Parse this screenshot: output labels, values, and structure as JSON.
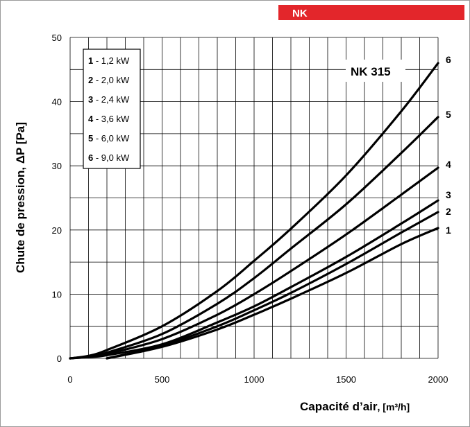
{
  "header_tag": {
    "label": "NK",
    "color": "#e3262b"
  },
  "chart_data": {
    "type": "line",
    "model_label": "NK 315",
    "xlabel_main": "Capacité d’air",
    "xlabel_unit": ", [m³/h]",
    "ylabel": "Chute de pression, ΔP [Pa]",
    "xlim": [
      0,
      2000
    ],
    "ylim": [
      0,
      50
    ],
    "x_ticks": [
      0,
      500,
      1000,
      1500,
      2000
    ],
    "y_ticks": [
      0,
      10,
      20,
      30,
      40,
      50
    ],
    "x_minor_step": 100,
    "y_minor_step": 5,
    "grid": true,
    "legend_position": "top-left",
    "legend": [
      {
        "num": "1",
        "text": " - 1,2 kW"
      },
      {
        "num": "2",
        "text": " - 2,0 kW"
      },
      {
        "num": "3",
        "text": " - 2,4 kW"
      },
      {
        "num": "4",
        "text": " - 3,6 kW"
      },
      {
        "num": "5",
        "text": " - 6,0 kW"
      },
      {
        "num": "6",
        "text": " - 9,0 kW"
      }
    ],
    "series": [
      {
        "name": "1",
        "x": [
          200,
          500,
          800,
          1000,
          1200,
          1500,
          1800,
          2000
        ],
        "y": [
          0,
          1.8,
          4.5,
          6.8,
          9.3,
          13.3,
          17.8,
          20.3
        ]
      },
      {
        "name": "2",
        "x": [
          200,
          500,
          800,
          1000,
          1200,
          1500,
          1800,
          2000
        ],
        "y": [
          0,
          2.0,
          5.0,
          7.5,
          10.2,
          14.7,
          19.6,
          22.8
        ]
      },
      {
        "name": "3",
        "x": [
          0,
          100,
          200,
          500,
          800,
          1000,
          1200,
          1500,
          1800,
          2000
        ],
        "y": [
          0,
          0.2,
          0.5,
          2.2,
          5.6,
          8.1,
          11.1,
          15.8,
          21.0,
          24.6
        ]
      },
      {
        "name": "4",
        "x": [
          0,
          100,
          200,
          500,
          800,
          1000,
          1200,
          1500,
          1800,
          2000
        ],
        "y": [
          0,
          0.3,
          0.7,
          3.0,
          6.8,
          10.0,
          13.6,
          19.3,
          25.5,
          29.7
        ]
      },
      {
        "name": "5",
        "x": [
          0,
          100,
          200,
          500,
          800,
          1000,
          1200,
          1500,
          1800,
          2000
        ],
        "y": [
          0,
          0.3,
          0.9,
          3.8,
          8.5,
          12.5,
          17.1,
          24.0,
          32.0,
          37.6
        ]
      },
      {
        "name": "6",
        "x": [
          0,
          100,
          200,
          500,
          800,
          1000,
          1200,
          1500,
          1800,
          2000
        ],
        "y": [
          0,
          0.4,
          1.3,
          5.0,
          10.5,
          15.2,
          20.2,
          28.5,
          38.5,
          46.0
        ]
      }
    ]
  }
}
